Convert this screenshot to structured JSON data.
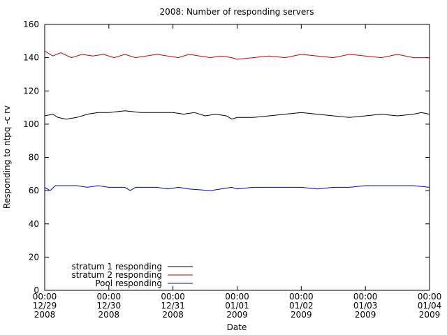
{
  "chart_data": {
    "type": "line",
    "title": "2008: Number of responding servers",
    "xlabel": "Date",
    "ylabel": "Responding to ntpq -c rv",
    "ylim": [
      0,
      160
    ],
    "yticks": [
      0,
      20,
      40,
      60,
      80,
      100,
      120,
      140,
      160
    ],
    "xlim": [
      "2008-12-29 00:00",
      "2009-01-04 00:00"
    ],
    "xticks": [
      {
        "date": "2008-12-29 00:00",
        "lines": [
          "00:00",
          "12/29",
          "2008"
        ]
      },
      {
        "date": "2008-12-30 00:00",
        "lines": [
          "00:00",
          "12/30",
          "2008"
        ]
      },
      {
        "date": "2008-12-31 00:00",
        "lines": [
          "00:00",
          "12/31",
          "2008"
        ]
      },
      {
        "date": "2009-01-01 00:00",
        "lines": [
          "00:00",
          "01/01",
          "2009"
        ]
      },
      {
        "date": "2009-01-02 00:00",
        "lines": [
          "00:00",
          "01/02",
          "2009"
        ]
      },
      {
        "date": "2009-01-03 00:00",
        "lines": [
          "00:00",
          "01/03",
          "2009"
        ]
      },
      {
        "date": "2009-01-04 00:00",
        "lines": [
          "00:00",
          "01/04",
          "2009"
        ]
      }
    ],
    "legend_position": "bottom-left",
    "grid": false,
    "series": [
      {
        "name": "stratum 1 responding",
        "color": "#000000",
        "points": [
          [
            "2008-12-29 00:00",
            105
          ],
          [
            "2008-12-29 03:00",
            106
          ],
          [
            "2008-12-29 05:00",
            104
          ],
          [
            "2008-12-29 08:00",
            103
          ],
          [
            "2008-12-29 12:00",
            104
          ],
          [
            "2008-12-29 16:00",
            106
          ],
          [
            "2008-12-29 20:00",
            107
          ],
          [
            "2008-12-30 00:00",
            107
          ],
          [
            "2008-12-30 06:00",
            108
          ],
          [
            "2008-12-30 12:00",
            107
          ],
          [
            "2008-12-30 18:00",
            107
          ],
          [
            "2008-12-31 00:00",
            107
          ],
          [
            "2008-12-31 04:00",
            106
          ],
          [
            "2008-12-31 08:00",
            107
          ],
          [
            "2008-12-31 12:00",
            105
          ],
          [
            "2008-12-31 16:00",
            106
          ],
          [
            "2008-12-31 20:00",
            105
          ],
          [
            "2008-12-31 22:00",
            103
          ],
          [
            "2009-01-01 00:00",
            104
          ],
          [
            "2009-01-01 06:00",
            104
          ],
          [
            "2009-01-01 12:00",
            105
          ],
          [
            "2009-01-01 18:00",
            106
          ],
          [
            "2009-01-02 00:00",
            107
          ],
          [
            "2009-01-02 06:00",
            106
          ],
          [
            "2009-01-02 12:00",
            105
          ],
          [
            "2009-01-02 18:00",
            104
          ],
          [
            "2009-01-03 00:00",
            105
          ],
          [
            "2009-01-03 06:00",
            106
          ],
          [
            "2009-01-03 12:00",
            105
          ],
          [
            "2009-01-03 18:00",
            106
          ],
          [
            "2009-01-03 21:00",
            107
          ],
          [
            "2009-01-04 00:00",
            106
          ]
        ]
      },
      {
        "name": "stratum 2 responding",
        "color": "#cc0000",
        "points": [
          [
            "2008-12-29 00:00",
            144
          ],
          [
            "2008-12-29 03:00",
            141
          ],
          [
            "2008-12-29 06:00",
            143
          ],
          [
            "2008-12-29 10:00",
            140
          ],
          [
            "2008-12-29 14:00",
            142
          ],
          [
            "2008-12-29 18:00",
            141
          ],
          [
            "2008-12-29 22:00",
            142
          ],
          [
            "2008-12-30 02:00",
            140
          ],
          [
            "2008-12-30 06:00",
            142
          ],
          [
            "2008-12-30 10:00",
            140
          ],
          [
            "2008-12-30 14:00",
            141
          ],
          [
            "2008-12-30 18:00",
            142
          ],
          [
            "2008-12-30 22:00",
            141
          ],
          [
            "2008-12-31 02:00",
            140
          ],
          [
            "2008-12-31 06:00",
            142
          ],
          [
            "2008-12-31 10:00",
            141
          ],
          [
            "2008-12-31 14:00",
            140
          ],
          [
            "2008-12-31 18:00",
            141
          ],
          [
            "2008-12-31 22:00",
            140
          ],
          [
            "2009-01-01 00:00",
            139
          ],
          [
            "2009-01-01 06:00",
            140
          ],
          [
            "2009-01-01 12:00",
            141
          ],
          [
            "2009-01-01 18:00",
            140
          ],
          [
            "2009-01-02 00:00",
            142
          ],
          [
            "2009-01-02 06:00",
            141
          ],
          [
            "2009-01-02 12:00",
            140
          ],
          [
            "2009-01-02 18:00",
            142
          ],
          [
            "2009-01-03 00:00",
            141
          ],
          [
            "2009-01-03 06:00",
            140
          ],
          [
            "2009-01-03 12:00",
            142
          ],
          [
            "2009-01-03 18:00",
            140
          ],
          [
            "2009-01-04 00:00",
            140
          ]
        ]
      },
      {
        "name": "Pool responding",
        "color": "#0000cc",
        "points": [
          [
            "2008-12-29 00:00",
            62
          ],
          [
            "2008-12-29 02:00",
            60
          ],
          [
            "2008-12-29 04:00",
            63
          ],
          [
            "2008-12-29 12:00",
            63
          ],
          [
            "2008-12-29 16:00",
            62
          ],
          [
            "2008-12-29 20:00",
            63
          ],
          [
            "2008-12-30 00:00",
            62
          ],
          [
            "2008-12-30 06:00",
            62
          ],
          [
            "2008-12-30 08:00",
            60
          ],
          [
            "2008-12-30 10:00",
            62
          ],
          [
            "2008-12-30 18:00",
            62
          ],
          [
            "2008-12-30 22:00",
            61
          ],
          [
            "2008-12-31 02:00",
            62
          ],
          [
            "2008-12-31 06:00",
            61
          ],
          [
            "2008-12-31 14:00",
            60
          ],
          [
            "2008-12-31 18:00",
            61
          ],
          [
            "2008-12-31 22:00",
            62
          ],
          [
            "2009-01-01 00:00",
            61
          ],
          [
            "2009-01-01 06:00",
            62
          ],
          [
            "2009-01-01 12:00",
            62
          ],
          [
            "2009-01-01 18:00",
            62
          ],
          [
            "2009-01-02 00:00",
            62
          ],
          [
            "2009-01-02 06:00",
            61
          ],
          [
            "2009-01-02 12:00",
            62
          ],
          [
            "2009-01-02 18:00",
            62
          ],
          [
            "2009-01-03 00:00",
            63
          ],
          [
            "2009-01-03 06:00",
            63
          ],
          [
            "2009-01-03 12:00",
            63
          ],
          [
            "2009-01-03 18:00",
            63
          ],
          [
            "2009-01-04 00:00",
            62
          ]
        ]
      }
    ]
  }
}
